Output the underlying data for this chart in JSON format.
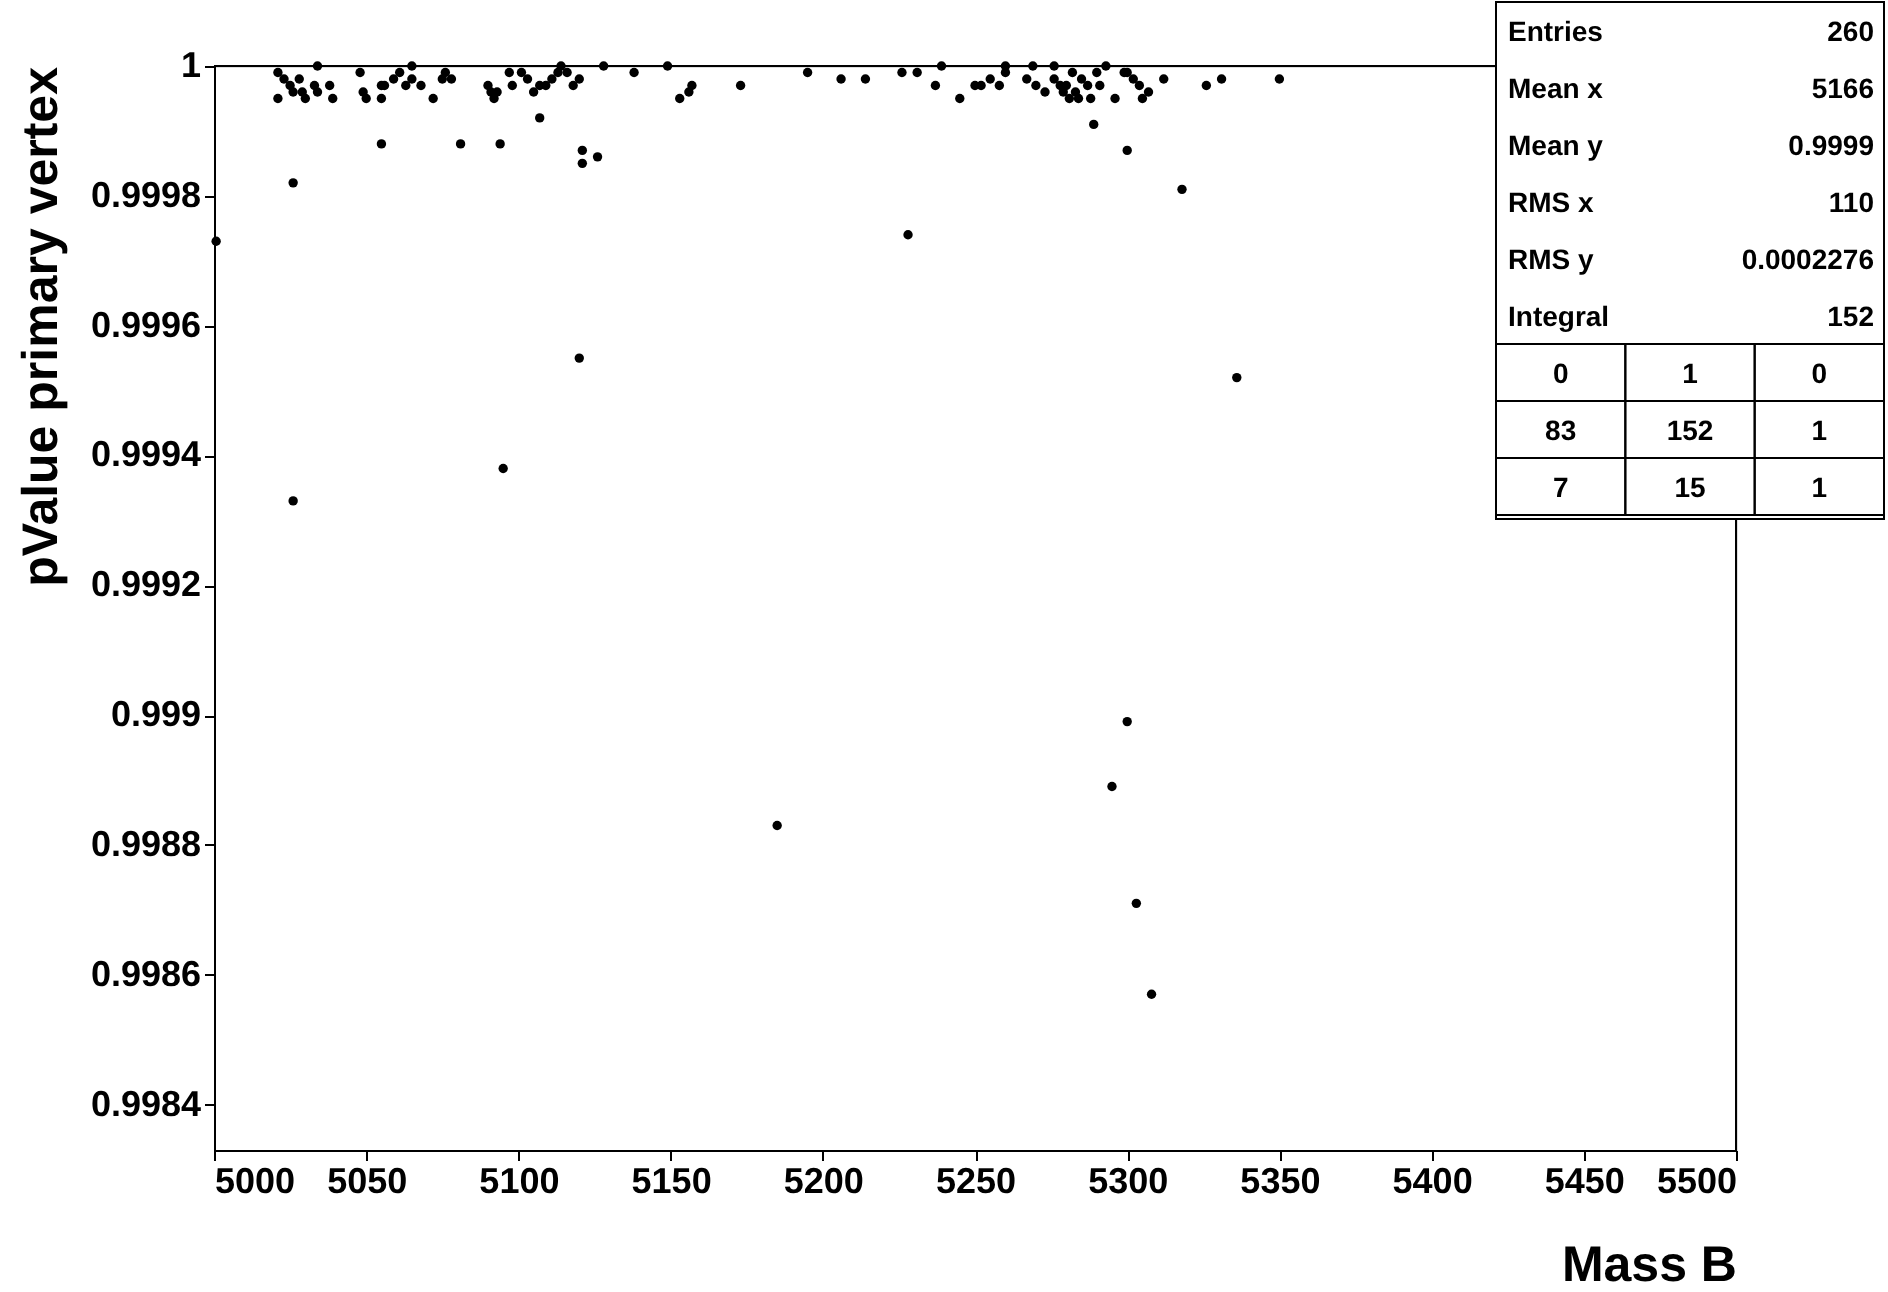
{
  "chart_data": {
    "type": "scatter",
    "xlabel": "Mass B",
    "ylabel": "pValue primary vertex",
    "xlim": [
      5000,
      5500
    ],
    "ylim": [
      0.99833,
      1.0
    ],
    "xticks": [
      5000,
      5050,
      5100,
      5150,
      5200,
      5250,
      5300,
      5350,
      5400,
      5450,
      5500
    ],
    "yticks": [
      0.9984,
      0.9986,
      0.9988,
      0.999,
      0.9992,
      0.9994,
      0.9996,
      0.9998,
      1
    ],
    "grid": false,
    "marker": "circle",
    "annotations": [
      "Entries",
      "260",
      "Mean x",
      "5166",
      "Mean y",
      "0.9999",
      "RMS x",
      "110",
      "RMS y",
      "0.0002276",
      "Integral",
      "152",
      "0",
      "1",
      "0",
      "83",
      "152",
      "1",
      "7",
      "15",
      "1"
    ],
    "series": [
      {
        "color": "#000000",
        "x": [
          5000.7,
          5026,
          5026,
          5095,
          5120,
          5336,
          5228,
          5318,
          5300,
          5295,
          5185,
          5303,
          5308,
          5021,
          5023,
          5021,
          5025,
          5026,
          5028,
          5029,
          5030,
          5033,
          5034,
          5034,
          5038,
          5039,
          5048,
          5049,
          5050,
          5055,
          5055,
          5056,
          5059,
          5061,
          5063,
          5065,
          5065,
          5068,
          5072,
          5075,
          5076,
          5078,
          5090,
          5091,
          5092,
          5093,
          5097,
          5098,
          5101,
          5103,
          5105,
          5107,
          5109,
          5111,
          5113,
          5114,
          5116,
          5118,
          5120,
          5128,
          5138,
          5149,
          5153,
          5156,
          5157,
          5173,
          5195,
          5206,
          5107,
          5055,
          5081,
          5094,
          5121,
          5121,
          5126,
          5214,
          5226,
          5231,
          5237,
          5239,
          5245,
          5250,
          5252,
          5255,
          5258,
          5260,
          5260,
          5267,
          5269,
          5270,
          5273,
          5276,
          5276,
          5278,
          5279,
          5280,
          5281,
          5282,
          5283,
          5284,
          5285,
          5287,
          5288,
          5290,
          5291,
          5293,
          5296,
          5299,
          5300,
          5302,
          5304,
          5305,
          5307,
          5312,
          5326,
          5331,
          5350,
          5289,
          5300
        ],
        "values": [
          0.99973,
          0.99982,
          0.99933,
          0.99938,
          0.99955,
          0.99952,
          0.99974,
          0.99981,
          0.99899,
          0.99889,
          0.99883,
          0.99871,
          0.99857,
          0.99999,
          0.99998,
          0.99995,
          0.99997,
          0.99996,
          0.99998,
          0.99996,
          0.99995,
          0.99997,
          1.0,
          0.99996,
          0.99997,
          0.99995,
          0.99999,
          0.99996,
          0.99995,
          0.99995,
          0.99997,
          0.99997,
          0.99998,
          0.99999,
          0.99997,
          1.0,
          0.99998,
          0.99997,
          0.99995,
          0.99998,
          0.99999,
          0.99998,
          0.99997,
          0.99996,
          0.99995,
          0.99996,
          0.99999,
          0.99997,
          0.99999,
          0.99998,
          0.99996,
          0.99997,
          0.99997,
          0.99998,
          0.99999,
          1.0,
          0.99999,
          0.99997,
          0.99998,
          1.0,
          0.99999,
          1.0,
          0.99995,
          0.99996,
          0.99997,
          0.99997,
          0.99999,
          0.99998,
          0.99992,
          0.99988,
          0.99988,
          0.99988,
          0.99987,
          0.99985,
          0.99986,
          0.99998,
          0.99999,
          0.99999,
          0.99997,
          1.0,
          0.99995,
          0.99997,
          0.99997,
          0.99998,
          0.99997,
          1.0,
          0.99999,
          0.99998,
          1.0,
          0.99997,
          0.99996,
          1.0,
          0.99998,
          0.99997,
          0.99996,
          0.99997,
          0.99995,
          0.99999,
          0.99996,
          0.99995,
          0.99998,
          0.99997,
          0.99995,
          0.99999,
          0.99997,
          1.0,
          0.99995,
          0.99999,
          0.99999,
          0.99998,
          0.99997,
          0.99995,
          0.99996,
          0.99998,
          0.99997,
          0.99998,
          0.99998,
          0.99991,
          0.99987
        ]
      }
    ]
  }
}
